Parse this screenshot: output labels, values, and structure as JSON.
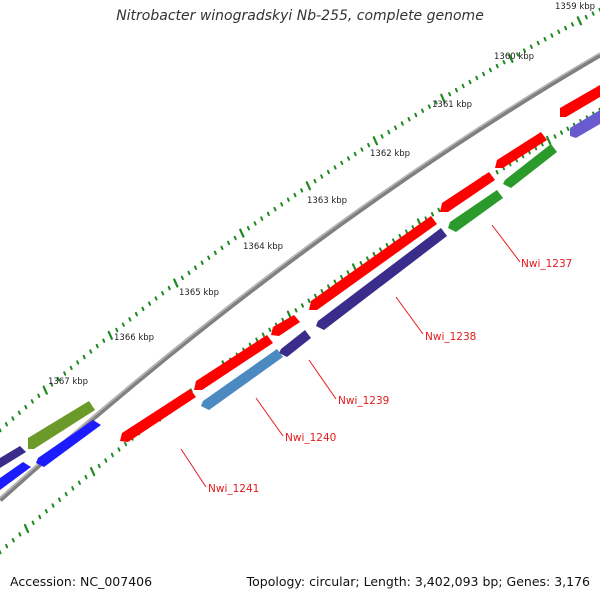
{
  "title": "Nitrobacter winogradskyi Nb-255, complete genome",
  "footer": {
    "accession": "Accession: NC_007406",
    "summary": "Topology: circular; Length: 3,402,093 bp; Genes: 3,176"
  },
  "colors": {
    "backbone": "#808080",
    "tick": "#1f8a1f",
    "tick_label": "#222222",
    "callout": "#e41a1c",
    "gene_forward": "#ff0000",
    "gene_reverse_dark": "#3a2c8a",
    "gene_reverse_green": "#2a9a2a",
    "gene_reverse_steel": "#4a8ac0",
    "gene_reverse_blue": "#1c1cff",
    "gene_reverse_violet": "#6a5ad0",
    "gene_forward_olive": "#6b9a2a"
  },
  "ticks": [
    {
      "label": "1359 kbp"
    },
    {
      "label": "1360 kbp"
    },
    {
      "label": "1361 kbp"
    },
    {
      "label": "1362 kbp"
    },
    {
      "label": "1363 kbp"
    },
    {
      "label": "1364 kbp"
    },
    {
      "label": "1365 kbp"
    },
    {
      "label": "1366 kbp"
    },
    {
      "label": "1367 kbp"
    }
  ],
  "gene_labels": [
    {
      "label": "Nwi_1237"
    },
    {
      "label": "Nwi_1238"
    },
    {
      "label": "Nwi_1239"
    },
    {
      "label": "Nwi_1240"
    },
    {
      "label": "Nwi_1241"
    }
  ]
}
